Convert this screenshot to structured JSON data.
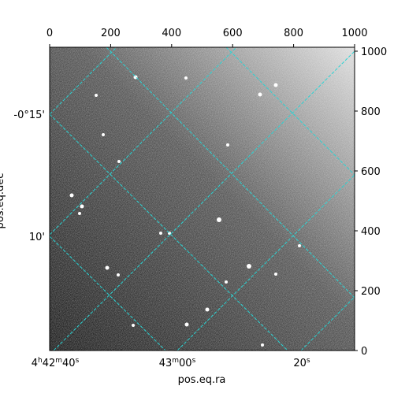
{
  "chart_data": {
    "type": "image",
    "xlabel": "pos.eq.ra",
    "ylabel": "pos.eq.dec",
    "xlim": [
      0,
      1000
    ],
    "ylim": [
      0,
      1000
    ],
    "top_ticks": [
      0,
      200,
      400,
      600,
      800,
      1000
    ],
    "right_ticks": [
      0,
      200,
      400,
      600,
      800,
      1000
    ],
    "bottom_labels": [
      [
        "4",
        "h",
        "42",
        "m",
        "40",
        "s"
      ],
      [
        "43",
        "m",
        "00",
        "s"
      ],
      [
        "20",
        "s"
      ]
    ],
    "left_labels": [
      "-0°15'",
      "10'"
    ],
    "grid_color": "#2ad4d4"
  }
}
